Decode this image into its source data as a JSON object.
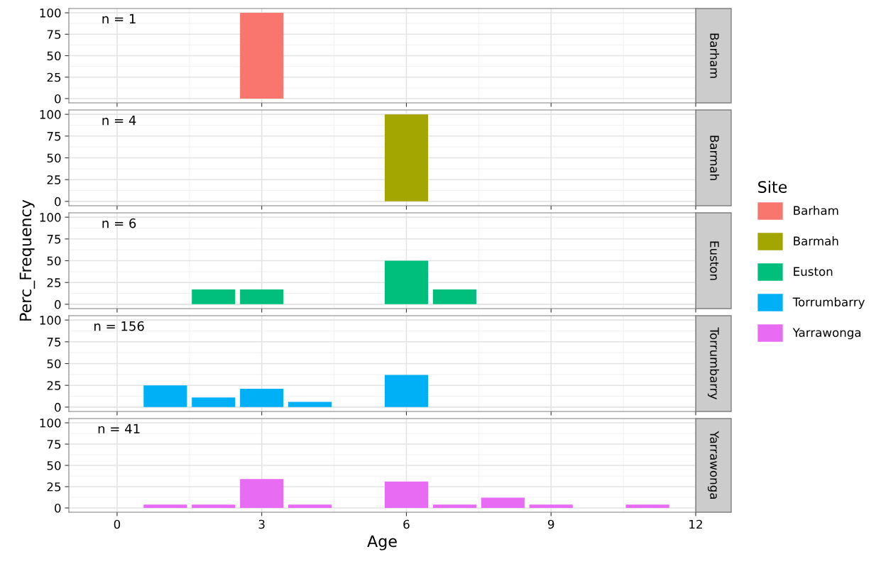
{
  "chart_data": [
    {
      "type": "bar",
      "x": [
        3
      ],
      "series": [
        {
          "name": "Barham",
          "color": "#f8766d",
          "values": [
            100
          ]
        }
      ],
      "xlim": [
        -1,
        12
      ],
      "ylim": [
        -5,
        105
      ],
      "yticks": [
        0,
        25,
        50,
        75,
        100
      ],
      "xticks": [
        0,
        3,
        6,
        9,
        12
      ],
      "tick_labels": "y",
      "grid": true,
      "legend": "right",
      "legend_title": "Site",
      "annotations": [
        "n = 1",
        "Barham"
      ]
    },
    {
      "type": "bar",
      "x": [
        6
      ],
      "series": [
        {
          "name": "Barmah",
          "color": "#a3a500",
          "values": [
            100
          ]
        }
      ],
      "xlim": [
        -1,
        12
      ],
      "ylim": [
        -5,
        105
      ],
      "yticks": [
        0,
        25,
        50,
        75,
        100
      ],
      "xticks": [
        0,
        3,
        6,
        9,
        12
      ],
      "tick_labels": "y",
      "grid": true,
      "legend": "right",
      "annotations": [
        "n = 4",
        "Barmah"
      ]
    },
    {
      "type": "bar",
      "x": [
        2,
        3,
        6,
        7
      ],
      "series": [
        {
          "name": "Euston",
          "color": "#00bf7d",
          "values": [
            17,
            17,
            50,
            17
          ]
        }
      ],
      "xlim": [
        -1,
        12
      ],
      "ylim": [
        -5,
        105
      ],
      "yticks": [
        0,
        25,
        50,
        75,
        100
      ],
      "xticks": [
        0,
        3,
        6,
        9,
        12
      ],
      "tick_labels": "y",
      "grid": true,
      "legend": "right",
      "ylabel": "Perc_Frequency",
      "annotations": [
        "n = 6",
        "Euston"
      ]
    },
    {
      "type": "bar",
      "x": [
        1,
        2,
        3,
        4,
        6
      ],
      "series": [
        {
          "name": "Torrumbarry",
          "color": "#00b0f6",
          "values": [
            25,
            11,
            21,
            6,
            37
          ]
        }
      ],
      "xlim": [
        -1,
        12
      ],
      "ylim": [
        -5,
        105
      ],
      "yticks": [
        0,
        25,
        50,
        75,
        100
      ],
      "xticks": [
        0,
        3,
        6,
        9,
        12
      ],
      "tick_labels": "y",
      "grid": true,
      "legend": "right",
      "annotations": [
        "n = 156",
        "Torrumbarry"
      ]
    },
    {
      "type": "bar",
      "x": [
        1,
        2,
        3,
        4,
        6,
        7,
        8,
        9,
        11
      ],
      "series": [
        {
          "name": "Yarrawonga",
          "color": "#e76bf3",
          "values": [
            4,
            4,
            34,
            4,
            31,
            4,
            12,
            4,
            4
          ]
        }
      ],
      "xlim": [
        -1,
        12
      ],
      "ylim": [
        -5,
        105
      ],
      "yticks": [
        0,
        25,
        50,
        75,
        100
      ],
      "xticks": [
        0,
        3,
        6,
        9,
        12
      ],
      "grid": true,
      "legend": "right",
      "xlabel": "Age",
      "annotations": [
        "n = 41",
        "Yarrawonga"
      ]
    }
  ]
}
